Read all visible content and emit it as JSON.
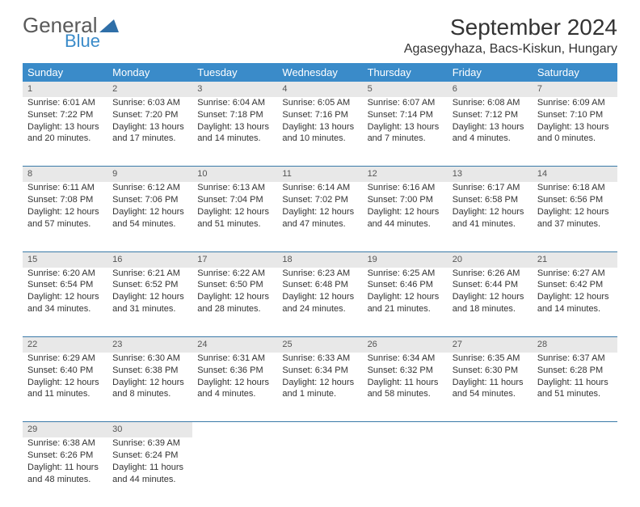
{
  "logo": {
    "general": "General",
    "blue": "Blue"
  },
  "title": "September 2024",
  "location": "Agasegyhaza, Bacs-Kiskun, Hungary",
  "colors": {
    "header_bg": "#3a8bc9",
    "header_text": "#ffffff",
    "daynum_bg": "#e8e8e8",
    "daynum_text": "#555555",
    "row_border": "#3a7aa8",
    "body_text": "#333333",
    "logo_gray": "#5a5a5a",
    "logo_blue": "#3a8bc9"
  },
  "weekdays": [
    "Sunday",
    "Monday",
    "Tuesday",
    "Wednesday",
    "Thursday",
    "Friday",
    "Saturday"
  ],
  "weeks": [
    [
      {
        "n": "1",
        "sr": "6:01 AM",
        "ss": "7:22 PM",
        "dl": "13 hours and 20 minutes."
      },
      {
        "n": "2",
        "sr": "6:03 AM",
        "ss": "7:20 PM",
        "dl": "13 hours and 17 minutes."
      },
      {
        "n": "3",
        "sr": "6:04 AM",
        "ss": "7:18 PM",
        "dl": "13 hours and 14 minutes."
      },
      {
        "n": "4",
        "sr": "6:05 AM",
        "ss": "7:16 PM",
        "dl": "13 hours and 10 minutes."
      },
      {
        "n": "5",
        "sr": "6:07 AM",
        "ss": "7:14 PM",
        "dl": "13 hours and 7 minutes."
      },
      {
        "n": "6",
        "sr": "6:08 AM",
        "ss": "7:12 PM",
        "dl": "13 hours and 4 minutes."
      },
      {
        "n": "7",
        "sr": "6:09 AM",
        "ss": "7:10 PM",
        "dl": "13 hours and 0 minutes."
      }
    ],
    [
      {
        "n": "8",
        "sr": "6:11 AM",
        "ss": "7:08 PM",
        "dl": "12 hours and 57 minutes."
      },
      {
        "n": "9",
        "sr": "6:12 AM",
        "ss": "7:06 PM",
        "dl": "12 hours and 54 minutes."
      },
      {
        "n": "10",
        "sr": "6:13 AM",
        "ss": "7:04 PM",
        "dl": "12 hours and 51 minutes."
      },
      {
        "n": "11",
        "sr": "6:14 AM",
        "ss": "7:02 PM",
        "dl": "12 hours and 47 minutes."
      },
      {
        "n": "12",
        "sr": "6:16 AM",
        "ss": "7:00 PM",
        "dl": "12 hours and 44 minutes."
      },
      {
        "n": "13",
        "sr": "6:17 AM",
        "ss": "6:58 PM",
        "dl": "12 hours and 41 minutes."
      },
      {
        "n": "14",
        "sr": "6:18 AM",
        "ss": "6:56 PM",
        "dl": "12 hours and 37 minutes."
      }
    ],
    [
      {
        "n": "15",
        "sr": "6:20 AM",
        "ss": "6:54 PM",
        "dl": "12 hours and 34 minutes."
      },
      {
        "n": "16",
        "sr": "6:21 AM",
        "ss": "6:52 PM",
        "dl": "12 hours and 31 minutes."
      },
      {
        "n": "17",
        "sr": "6:22 AM",
        "ss": "6:50 PM",
        "dl": "12 hours and 28 minutes."
      },
      {
        "n": "18",
        "sr": "6:23 AM",
        "ss": "6:48 PM",
        "dl": "12 hours and 24 minutes."
      },
      {
        "n": "19",
        "sr": "6:25 AM",
        "ss": "6:46 PM",
        "dl": "12 hours and 21 minutes."
      },
      {
        "n": "20",
        "sr": "6:26 AM",
        "ss": "6:44 PM",
        "dl": "12 hours and 18 minutes."
      },
      {
        "n": "21",
        "sr": "6:27 AM",
        "ss": "6:42 PM",
        "dl": "12 hours and 14 minutes."
      }
    ],
    [
      {
        "n": "22",
        "sr": "6:29 AM",
        "ss": "6:40 PM",
        "dl": "12 hours and 11 minutes."
      },
      {
        "n": "23",
        "sr": "6:30 AM",
        "ss": "6:38 PM",
        "dl": "12 hours and 8 minutes."
      },
      {
        "n": "24",
        "sr": "6:31 AM",
        "ss": "6:36 PM",
        "dl": "12 hours and 4 minutes."
      },
      {
        "n": "25",
        "sr": "6:33 AM",
        "ss": "6:34 PM",
        "dl": "12 hours and 1 minute."
      },
      {
        "n": "26",
        "sr": "6:34 AM",
        "ss": "6:32 PM",
        "dl": "11 hours and 58 minutes."
      },
      {
        "n": "27",
        "sr": "6:35 AM",
        "ss": "6:30 PM",
        "dl": "11 hours and 54 minutes."
      },
      {
        "n": "28",
        "sr": "6:37 AM",
        "ss": "6:28 PM",
        "dl": "11 hours and 51 minutes."
      }
    ],
    [
      {
        "n": "29",
        "sr": "6:38 AM",
        "ss": "6:26 PM",
        "dl": "11 hours and 48 minutes."
      },
      {
        "n": "30",
        "sr": "6:39 AM",
        "ss": "6:24 PM",
        "dl": "11 hours and 44 minutes."
      },
      null,
      null,
      null,
      null,
      null
    ]
  ],
  "labels": {
    "sunrise": "Sunrise:",
    "sunset": "Sunset:",
    "daylight": "Daylight:"
  }
}
